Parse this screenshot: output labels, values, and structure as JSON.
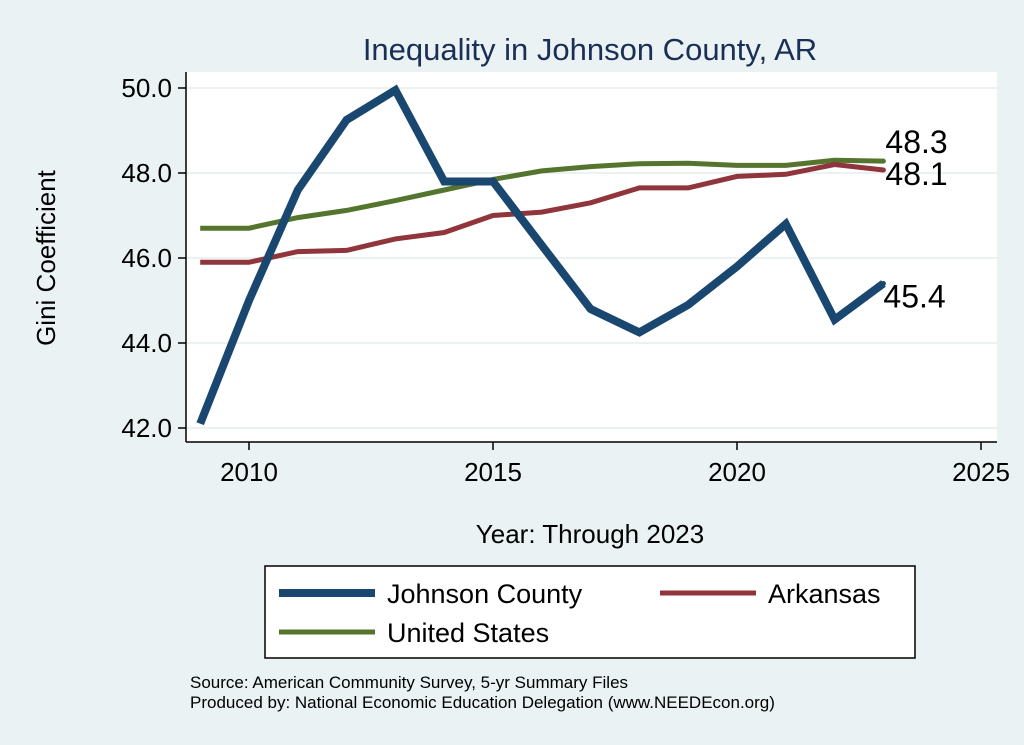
{
  "chart_data": {
    "type": "line",
    "title": "Inequality in Johnson County, AR",
    "xlabel": "Year: Through 2023",
    "ylabel": "Gini Coefficient",
    "xlim": [
      2009,
      2025
    ],
    "ylim": [
      42,
      50
    ],
    "xticks": [
      2010,
      2015,
      2020,
      2025
    ],
    "yticks": [
      "42.0",
      "44.0",
      "46.0",
      "48.0",
      "50.0"
    ],
    "x": [
      2009,
      2010,
      2011,
      2012,
      2013,
      2014,
      2015,
      2016,
      2017,
      2018,
      2019,
      2020,
      2021,
      2022,
      2023
    ],
    "series": [
      {
        "name": "Johnson County",
        "color": "#1a476f",
        "values": [
          42.1,
          45.0,
          47.6,
          49.25,
          49.95,
          47.8,
          47.8,
          46.3,
          44.8,
          44.25,
          44.9,
          45.8,
          46.8,
          44.55,
          45.4
        ],
        "end_label": "45.4"
      },
      {
        "name": "Arkansas",
        "color": "#90353b",
        "values": [
          45.9,
          45.9,
          46.15,
          46.18,
          46.45,
          46.6,
          47.0,
          47.08,
          47.3,
          47.65,
          47.65,
          47.92,
          47.97,
          48.2,
          48.07
        ],
        "end_label": "48.1"
      },
      {
        "name": "United States",
        "color": "#55752f",
        "values": [
          46.7,
          46.7,
          46.95,
          47.12,
          47.35,
          47.6,
          47.85,
          48.05,
          48.15,
          48.22,
          48.23,
          48.18,
          48.18,
          48.3,
          48.28
        ],
        "end_label": "48.3"
      }
    ],
    "legend": {
      "position": "bottom",
      "items": [
        "Johnson County",
        "Arkansas",
        "United States"
      ]
    },
    "notes": [
      "Source: American Community Survey, 5-yr Summary Files",
      "Produced by: National Economic Education Delegation (www.NEEDEcon.org)"
    ]
  }
}
